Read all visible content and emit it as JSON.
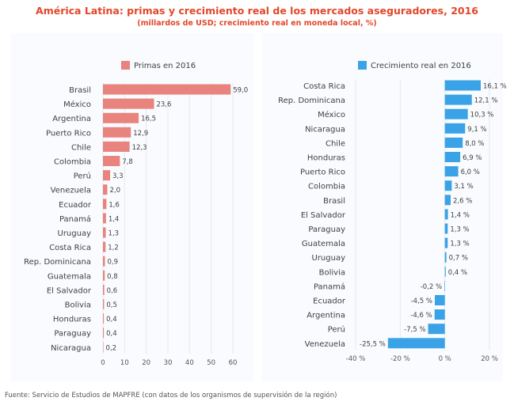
{
  "header": {
    "title": "América Latina: primas y crecimiento real de los mercados aseguradores, 2016",
    "subtitle": "(millardos de USD; crecimiento real en moneda local, %)"
  },
  "footer": {
    "source": "Fuente: Servicio de Estudios de MAPFRE (con datos de los organismos de supervisión de la región)"
  },
  "colors": {
    "primas": "#e8837e",
    "crecimiento": "#3aa3e8",
    "title": "#e2472a",
    "text": "#404040"
  },
  "chart_data": [
    {
      "type": "bar",
      "orientation": "horizontal",
      "legend": "Primas en 2016",
      "legend_position": "top",
      "categories": [
        "Brasil",
        "México",
        "Argentina",
        "Puerto Rico",
        "Chile",
        "Colombia",
        "Perú",
        "Venezuela",
        "Ecuador",
        "Panamá",
        "Uruguay",
        "Costa Rica",
        "Rep. Dominicana",
        "Guatemala",
        "El Salvador",
        "Bolivia",
        "Honduras",
        "Paraguay",
        "Nicaragua"
      ],
      "values": [
        59.0,
        23.6,
        16.5,
        12.9,
        12.3,
        7.8,
        3.3,
        2.0,
        1.6,
        1.4,
        1.3,
        1.2,
        0.9,
        0.8,
        0.6,
        0.5,
        0.4,
        0.4,
        0.2
      ],
      "value_labels": [
        "59,0",
        "23,6",
        "16,5",
        "12,9",
        "12,3",
        "7,8",
        "3,3",
        "2,0",
        "1,6",
        "1,4",
        "1,3",
        "1,2",
        "0,9",
        "0,8",
        "0,6",
        "0,5",
        "0,4",
        "0,4",
        "0,2"
      ],
      "xlim": [
        0,
        60
      ],
      "xticks": [
        "0",
        "10",
        "20",
        "30",
        "40",
        "50",
        "60"
      ],
      "grid": true
    },
    {
      "type": "bar",
      "orientation": "horizontal",
      "legend": "Crecimiento real en 2016",
      "legend_position": "top",
      "categories": [
        "Costa Rica",
        "Rep. Dominicana",
        "México",
        "Nicaragua",
        "Chile",
        "Honduras",
        "Puerto Rico",
        "Colombia",
        "Brasil",
        "El Salvador",
        "Paraguay",
        "Guatemala",
        "Uruguay",
        "Bolivia",
        "Panamá",
        "Ecuador",
        "Argentina",
        "Perú",
        "Venezuela"
      ],
      "values": [
        16.1,
        12.1,
        10.3,
        9.1,
        8.0,
        6.9,
        6.0,
        3.1,
        2.6,
        1.4,
        1.3,
        1.3,
        0.7,
        0.4,
        -0.2,
        -4.5,
        -4.6,
        -7.5,
        -25.5
      ],
      "value_labels": [
        "16,1 %",
        "12,1 %",
        "10,3 %",
        "9,1 %",
        "8,0 %",
        "6,9 %",
        "6,0 %",
        "3,1 %",
        "2,6 %",
        "1,4 %",
        "1,3 %",
        "1,3 %",
        "0,7 %",
        "0,4 %",
        "-0,2 %",
        "-4,5 %",
        "-4,6 %",
        "-7,5 %",
        "-25,5 %"
      ],
      "xlim": [
        -40,
        20
      ],
      "xticks": [
        "-40 %",
        "-20 %",
        "0 %",
        "20 %"
      ],
      "grid": true
    }
  ]
}
